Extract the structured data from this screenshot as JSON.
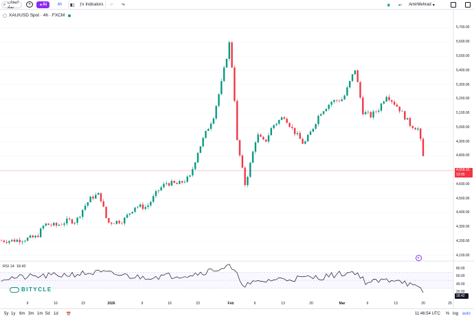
{
  "toolbar": {
    "search_label": "انتخاب نماد",
    "ai_label": "AI",
    "timeframe": "4h",
    "indicators_label": "Indicators",
    "username": "AmirMehrad"
  },
  "legend": {
    "symbol": "XAU/USD Spot · 4h · FXCM"
  },
  "price_axis": {
    "labels": [
      "5,700.00",
      "5,600.00",
      "5,500.00",
      "5,400.00",
      "5,300.00",
      "5,200.00",
      "5,100.00",
      "5,000.00",
      "4,900.00",
      "4,800.00",
      "4,700.00",
      "4,600.00",
      "4,500.00",
      "4,400.00",
      "4,300.00",
      "4,200.00",
      "4,100.00"
    ],
    "last_price": "4,658.33",
    "countdown": "13:05"
  },
  "time_axis": {
    "labels": [
      "9",
      "16",
      "23",
      "2026",
      "9",
      "16",
      "23",
      "Feb",
      "6",
      "13",
      "20",
      "Mar",
      "6",
      "13",
      "20",
      "25"
    ]
  },
  "rsi": {
    "label": "RSI 14",
    "value": "18.42",
    "axis_labels": [
      "80.00",
      "60.00",
      "40.00",
      "20.00"
    ]
  },
  "watermark": {
    "text": "BITYCLE"
  },
  "bottom_bar": {
    "ranges": [
      "5y",
      "1y",
      "6m",
      "3m",
      "1m",
      "5d",
      "1d"
    ],
    "clock": "11:46:54 UTC",
    "percent": "%",
    "log": "log",
    "auto": "auto"
  },
  "colors": {
    "up": "#089981",
    "down": "#f23645",
    "accent": "#2962ff",
    "ai": "#8c29f7"
  },
  "chart_data": {
    "type": "candlestick",
    "symbol": "XAU/USD",
    "interval": "4h",
    "ylim": [
      4070,
      5760
    ],
    "last": 4658.33,
    "close_path": [
      {
        "date": "2025-12-01",
        "v": 4205
      },
      {
        "date": "2025-12-04",
        "v": 4205
      },
      {
        "date": "2025-12-07",
        "v": 4215
      },
      {
        "date": "2025-12-10",
        "v": 4230
      },
      {
        "date": "2025-12-12",
        "v": 4320
      },
      {
        "date": "2025-12-15",
        "v": 4310
      },
      {
        "date": "2025-12-18",
        "v": 4345
      },
      {
        "date": "2025-12-20",
        "v": 4340
      },
      {
        "date": "2025-12-22",
        "v": 4440
      },
      {
        "date": "2025-12-24",
        "v": 4510
      },
      {
        "date": "2025-12-26",
        "v": 4530
      },
      {
        "date": "2025-12-28",
        "v": 4330
      },
      {
        "date": "2026-01-01",
        "v": 4345
      },
      {
        "date": "2026-01-04",
        "v": 4445
      },
      {
        "date": "2026-01-07",
        "v": 4440
      },
      {
        "date": "2026-01-10",
        "v": 4560
      },
      {
        "date": "2026-01-12",
        "v": 4610
      },
      {
        "date": "2026-01-15",
        "v": 4600
      },
      {
        "date": "2026-01-18",
        "v": 4650
      },
      {
        "date": "2026-01-20",
        "v": 4830
      },
      {
        "date": "2026-01-22",
        "v": 4960
      },
      {
        "date": "2026-01-24",
        "v": 5080
      },
      {
        "date": "2026-01-26",
        "v": 5310
      },
      {
        "date": "2026-01-28",
        "v": 5590
      },
      {
        "date": "2026-01-29",
        "v": 5350
      },
      {
        "date": "2026-01-30",
        "v": 4900
      },
      {
        "date": "2026-02-01",
        "v": 4600
      },
      {
        "date": "2026-02-02",
        "v": 4700
      },
      {
        "date": "2026-02-04",
        "v": 4950
      },
      {
        "date": "2026-02-06",
        "v": 4890
      },
      {
        "date": "2026-02-08",
        "v": 5010
      },
      {
        "date": "2026-02-11",
        "v": 5080
      },
      {
        "date": "2026-02-13",
        "v": 4990
      },
      {
        "date": "2026-02-16",
        "v": 4880
      },
      {
        "date": "2026-02-18",
        "v": 4980
      },
      {
        "date": "2026-02-20",
        "v": 5100
      },
      {
        "date": "2026-02-23",
        "v": 5180
      },
      {
        "date": "2026-02-26",
        "v": 5200
      },
      {
        "date": "2026-03-01",
        "v": 5410
      },
      {
        "date": "2026-03-03",
        "v": 5110
      },
      {
        "date": "2026-03-05",
        "v": 5080
      },
      {
        "date": "2026-03-07",
        "v": 5130
      },
      {
        "date": "2026-03-09",
        "v": 5230
      },
      {
        "date": "2026-03-12",
        "v": 5140
      },
      {
        "date": "2026-03-15",
        "v": 5020
      },
      {
        "date": "2026-03-17",
        "v": 4990
      },
      {
        "date": "2026-03-18",
        "v": 4860
      },
      {
        "date": "2026-03-19",
        "v": 4658
      }
    ],
    "rsi_path": [
      {
        "date": "2025-12-01",
        "v": 55
      },
      {
        "date": "2025-12-14",
        "v": 62
      },
      {
        "date": "2025-12-26",
        "v": 70
      },
      {
        "date": "2026-01-05",
        "v": 58
      },
      {
        "date": "2026-01-18",
        "v": 64
      },
      {
        "date": "2026-01-28",
        "v": 85
      },
      {
        "date": "2026-02-01",
        "v": 38
      },
      {
        "date": "2026-02-08",
        "v": 52
      },
      {
        "date": "2026-02-20",
        "v": 58
      },
      {
        "date": "2026-03-01",
        "v": 72
      },
      {
        "date": "2026-03-04",
        "v": 44
      },
      {
        "date": "2026-03-12",
        "v": 54
      },
      {
        "date": "2026-03-19",
        "v": 18.42
      }
    ]
  }
}
